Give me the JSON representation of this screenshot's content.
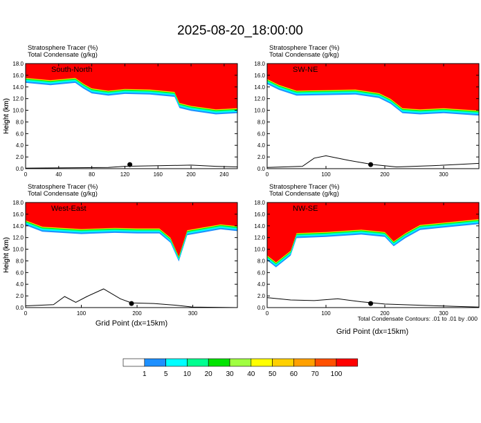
{
  "title": "2025-08-20_18:00:00",
  "chart_data": {
    "type": "heatmap",
    "colorbar": {
      "levels": [
        "1",
        "5",
        "10",
        "20",
        "30",
        "40",
        "50",
        "60",
        "70",
        "100"
      ],
      "colors": [
        "#ffffff",
        "#1e90ff",
        "#00ffff",
        "#00ff90",
        "#00e400",
        "#a0ff40",
        "#ffff00",
        "#ffd000",
        "#ffa000",
        "#ff5000",
        "#ff0000"
      ]
    },
    "contour_note": "Total Condensate Contours: .01 to .01 by .000",
    "xlabel": "Grid Point (dx=15km)",
    "ylabel": "Height (km)",
    "yticks": [
      "0.0",
      "2.0",
      "4.0",
      "6.0",
      "8.0",
      "10.0",
      "12.0",
      "14.0",
      "16.0",
      "18.0"
    ],
    "ylim": [
      0,
      18
    ],
    "panels": [
      {
        "name": "South-North",
        "label1": "Stratosphere Tracer   (%)",
        "label2": "Total Condensate   (g/kg)",
        "xlim": [
          0,
          256
        ],
        "xticks": [
          0,
          40,
          80,
          120,
          160,
          200,
          240
        ],
        "marker_x": 126,
        "boundary": [
          [
            0,
            15.6
          ],
          [
            30,
            15.2
          ],
          [
            60,
            15.6
          ],
          [
            70,
            14.6
          ],
          [
            80,
            13.8
          ],
          [
            100,
            13.4
          ],
          [
            120,
            13.7
          ],
          [
            150,
            13.6
          ],
          [
            180,
            13.2
          ],
          [
            186,
            11.3
          ],
          [
            200,
            10.8
          ],
          [
            230,
            10.2
          ],
          [
            256,
            10.4
          ]
        ],
        "terrain": [
          [
            0,
            0.1
          ],
          [
            100,
            0.2
          ],
          [
            120,
            0.4
          ],
          [
            160,
            0.5
          ],
          [
            200,
            0.6
          ],
          [
            230,
            0.4
          ],
          [
            256,
            0.3
          ]
        ]
      },
      {
        "name": "SW-NE",
        "label1": "Stratosphere Tracer   (%)",
        "label2": "Total Condensate   (g/kg)",
        "xlim": [
          0,
          360
        ],
        "xticks": [
          0,
          100,
          200,
          300
        ],
        "marker_x": 176,
        "boundary": [
          [
            0,
            15.4
          ],
          [
            20,
            14.4
          ],
          [
            50,
            13.4
          ],
          [
            100,
            13.5
          ],
          [
            150,
            13.6
          ],
          [
            190,
            13.0
          ],
          [
            210,
            12.0
          ],
          [
            230,
            10.4
          ],
          [
            260,
            10.2
          ],
          [
            300,
            10.4
          ],
          [
            330,
            10.2
          ],
          [
            360,
            10.0
          ]
        ],
        "terrain": [
          [
            0,
            0.2
          ],
          [
            60,
            0.4
          ],
          [
            80,
            1.8
          ],
          [
            100,
            2.2
          ],
          [
            140,
            1.4
          ],
          [
            180,
            0.7
          ],
          [
            220,
            0.3
          ],
          [
            280,
            0.5
          ],
          [
            320,
            0.7
          ],
          [
            360,
            0.9
          ]
        ]
      },
      {
        "name": "West-East",
        "label1": "Stratosphere Tracer   (%)",
        "label2": "Total Condensate   (g/kg)",
        "xlim": [
          0,
          380
        ],
        "xticks": [
          0,
          100,
          200,
          300
        ],
        "marker_x": 190,
        "boundary": [
          [
            0,
            15.0
          ],
          [
            30,
            13.9
          ],
          [
            100,
            13.5
          ],
          [
            160,
            13.7
          ],
          [
            200,
            13.6
          ],
          [
            240,
            13.6
          ],
          [
            260,
            12.0
          ],
          [
            275,
            8.8
          ],
          [
            290,
            13.3
          ],
          [
            320,
            13.8
          ],
          [
            350,
            14.3
          ],
          [
            380,
            14.0
          ]
        ],
        "terrain": [
          [
            0,
            0.3
          ],
          [
            50,
            0.5
          ],
          [
            70,
            1.9
          ],
          [
            90,
            0.9
          ],
          [
            110,
            1.9
          ],
          [
            140,
            3.2
          ],
          [
            170,
            1.5
          ],
          [
            190,
            0.8
          ],
          [
            230,
            0.7
          ],
          [
            270,
            0.4
          ],
          [
            300,
            0.1
          ],
          [
            380,
            0.0
          ]
        ]
      },
      {
        "name": "NW-SE",
        "label1": "Stratosphere Tracer   (%)",
        "label2": "Total Condensate   (g/kg)",
        "xlim": [
          0,
          360
        ],
        "xticks": [
          0,
          100,
          200,
          300
        ],
        "marker_x": 176,
        "boundary": [
          [
            0,
            9.0
          ],
          [
            15,
            7.8
          ],
          [
            40,
            9.8
          ],
          [
            50,
            12.8
          ],
          [
            100,
            13.0
          ],
          [
            160,
            13.4
          ],
          [
            200,
            13.0
          ],
          [
            215,
            11.4
          ],
          [
            235,
            12.8
          ],
          [
            260,
            14.2
          ],
          [
            300,
            14.6
          ],
          [
            360,
            15.2
          ]
        ],
        "terrain": [
          [
            0,
            1.7
          ],
          [
            40,
            1.3
          ],
          [
            80,
            1.2
          ],
          [
            120,
            1.5
          ],
          [
            160,
            1.0
          ],
          [
            200,
            0.6
          ],
          [
            260,
            0.4
          ],
          [
            320,
            0.2
          ],
          [
            360,
            0.1
          ]
        ]
      }
    ]
  }
}
